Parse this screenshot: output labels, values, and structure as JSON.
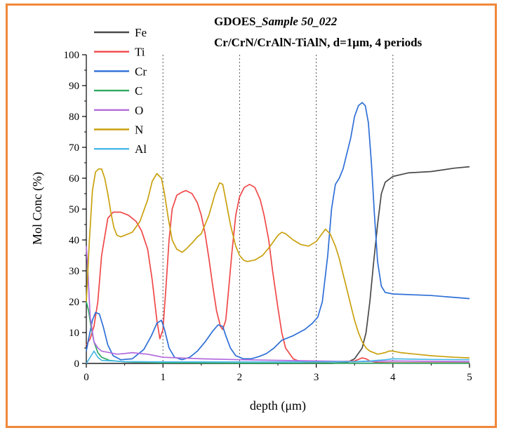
{
  "title_prefix": "GDOES_",
  "title_italic": "Sample 50_022",
  "subtitle": "Cr/CrN/CrAlN-TiAlN, d=1μm, 4 periods",
  "xlabel": "depth (μm)",
  "ylabel": "Mol Conc (%)",
  "colors": {
    "frame": "#f0883a",
    "Fe": "#4a4a4a",
    "Ti": "#f04848",
    "Cr": "#2e6fd6",
    "C": "#2eaa62",
    "O": "#b36bde",
    "N": "#c9a10e",
    "Al": "#48b8ea"
  },
  "chart_data": {
    "type": "line",
    "xlim": [
      0,
      5
    ],
    "ylim": [
      0,
      100
    ],
    "xticks": [
      "0",
      "1",
      "2",
      "3",
      "4",
      "5"
    ],
    "yticks": [
      "0",
      "10",
      "20",
      "30",
      "40",
      "50",
      "60",
      "70",
      "80",
      "90",
      "100"
    ],
    "vlines": [
      1,
      2,
      3,
      4
    ],
    "legend": [
      "Fe",
      "Ti",
      "Cr",
      "C",
      "O",
      "N",
      "Al"
    ],
    "series": [
      {
        "name": "Fe",
        "x": [
          0,
          3.2,
          3.4,
          3.5,
          3.6,
          3.65,
          3.7,
          3.75,
          3.8,
          3.85,
          3.9,
          4.0,
          4.2,
          4.5,
          4.8,
          5.0
        ],
        "y": [
          0,
          0,
          0.3,
          1.5,
          5,
          10,
          20,
          33,
          45,
          55,
          59,
          60.5,
          61.5,
          62.5,
          63,
          63.7
        ]
      },
      {
        "name": "Ti",
        "x": [
          0,
          0.05,
          0.1,
          0.15,
          0.2,
          0.28,
          0.35,
          0.45,
          0.55,
          0.65,
          0.72,
          0.8,
          0.86,
          0.92,
          0.96,
          1.0,
          1.04,
          1.08,
          1.12,
          1.18,
          1.25,
          1.3,
          1.38,
          1.45,
          1.5,
          1.55,
          1.6,
          1.65,
          1.7,
          1.75,
          1.78,
          1.82,
          1.85,
          1.9,
          1.95,
          2.0,
          2.06,
          2.13,
          2.2,
          2.27,
          2.32,
          2.38,
          2.43,
          2.5,
          2.55,
          2.6,
          2.7,
          2.8,
          3.0,
          3.5,
          3.6,
          3.65,
          3.7,
          3.8,
          4.0,
          5.0
        ],
        "y": [
          6,
          8,
          12,
          20,
          35,
          47,
          49,
          49,
          48,
          46,
          43,
          37,
          27,
          14,
          8,
          11,
          25,
          40,
          50,
          54.5,
          55.5,
          56,
          55,
          52,
          48,
          42,
          34,
          25,
          17,
          12,
          11,
          14,
          22,
          36,
          48,
          54,
          57,
          58,
          57,
          53,
          48,
          40,
          30,
          18,
          10,
          5,
          1.5,
          0.5,
          0.3,
          0.8,
          1.8,
          1.5,
          0.8,
          0.3,
          0.2,
          0.2
        ]
      },
      {
        "name": "Cr",
        "x": [
          0,
          0.03,
          0.08,
          0.12,
          0.17,
          0.22,
          0.28,
          0.35,
          0.45,
          0.6,
          0.75,
          0.85,
          0.92,
          0.98,
          1.02,
          1.08,
          1.15,
          1.25,
          1.35,
          1.45,
          1.55,
          1.65,
          1.72,
          1.78,
          1.82,
          1.88,
          1.95,
          2.05,
          2.15,
          2.25,
          2.35,
          2.45,
          2.55,
          2.7,
          2.85,
          2.95,
          3.02,
          3.08,
          3.15,
          3.2,
          3.25,
          3.3,
          3.35,
          3.45,
          3.5,
          3.55,
          3.6,
          3.64,
          3.68,
          3.72,
          3.76,
          3.8,
          3.85,
          3.9,
          4.0,
          4.5,
          5.0
        ],
        "y": [
          4,
          8,
          14,
          16.5,
          16,
          12,
          6,
          2.5,
          1.2,
          1.5,
          4.5,
          9,
          13,
          14,
          11,
          5,
          2,
          1.2,
          2,
          4,
          7,
          10.5,
          12.5,
          12,
          9,
          5,
          2.5,
          1.5,
          1.5,
          2.2,
          3.2,
          5,
          7.5,
          9,
          11,
          13,
          15,
          20,
          35,
          50,
          58,
          60,
          63,
          73,
          80,
          83.5,
          84.5,
          83.5,
          78,
          65,
          48,
          33,
          25,
          23,
          22.5,
          22,
          21
        ]
      },
      {
        "name": "C",
        "x": [
          0,
          0.03,
          0.06,
          0.1,
          0.15,
          0.2,
          0.3,
          0.5,
          1.0,
          2.0,
          3.0,
          4.0,
          5.0
        ],
        "y": [
          20,
          17,
          12,
          7,
          3.5,
          2,
          1,
          0.5,
          0.2,
          0.1,
          0.1,
          0.1,
          0.1
        ]
      },
      {
        "name": "O",
        "x": [
          0,
          0.02,
          0.05,
          0.1,
          0.15,
          0.2,
          0.3,
          0.4,
          0.5,
          0.6,
          0.7,
          0.8,
          0.9,
          1.0,
          1.5,
          2.0,
          2.5,
          3.0,
          3.5,
          4.0,
          5.0
        ],
        "y": [
          38,
          30,
          15,
          7,
          5,
          4,
          3.5,
          3,
          3.2,
          3.5,
          3.2,
          3,
          2.5,
          2,
          1.5,
          1.2,
          1,
          0.8,
          0.6,
          0.8,
          0.6
        ]
      },
      {
        "name": "N",
        "x": [
          0,
          0.04,
          0.08,
          0.12,
          0.16,
          0.2,
          0.24,
          0.28,
          0.32,
          0.36,
          0.4,
          0.45,
          0.5,
          0.6,
          0.7,
          0.8,
          0.86,
          0.92,
          0.98,
          1.02,
          1.07,
          1.12,
          1.18,
          1.25,
          1.3,
          1.38,
          1.45,
          1.5,
          1.6,
          1.68,
          1.74,
          1.78,
          1.82,
          1.88,
          1.95,
          2.0,
          2.05,
          2.1,
          2.2,
          2.3,
          2.4,
          2.5,
          2.55,
          2.6,
          2.7,
          2.8,
          2.9,
          3.0,
          3.06,
          3.12,
          3.18,
          3.25,
          3.3,
          3.35,
          3.4,
          3.45,
          3.5,
          3.55,
          3.6,
          3.65,
          3.7,
          3.75,
          3.8,
          3.9,
          3.95,
          4.0,
          4.1,
          4.3,
          4.5,
          4.8,
          5.0
        ],
        "y": [
          20,
          40,
          56,
          62,
          63,
          63,
          60,
          55,
          49,
          44,
          41.5,
          41,
          41.5,
          42.5,
          46,
          53,
          59,
          61.5,
          60,
          55,
          47,
          40,
          37,
          36,
          37,
          39,
          41,
          42,
          48,
          55,
          58.5,
          58,
          53,
          45,
          38,
          35,
          33.5,
          33,
          33.5,
          35,
          38,
          41.5,
          42.5,
          42,
          40,
          38.5,
          38,
          39.5,
          41.5,
          43.5,
          42,
          38,
          34,
          29,
          24,
          19,
          14,
          10,
          7,
          5,
          4,
          3.5,
          3,
          3.5,
          4,
          4,
          3.5,
          3,
          2.5,
          2,
          1.8
        ]
      },
      {
        "name": "Al",
        "x": [
          0,
          0.05,
          0.1,
          0.15,
          0.2,
          0.5,
          1.0,
          2.0,
          3.0,
          3.5,
          3.7,
          3.9,
          4.0,
          4.5,
          5.0
        ],
        "y": [
          0,
          2,
          4,
          2,
          1,
          0.6,
          0.5,
          0.5,
          0.5,
          0.6,
          0.8,
          1.2,
          1.5,
          1.3,
          1.2
        ]
      }
    ]
  }
}
